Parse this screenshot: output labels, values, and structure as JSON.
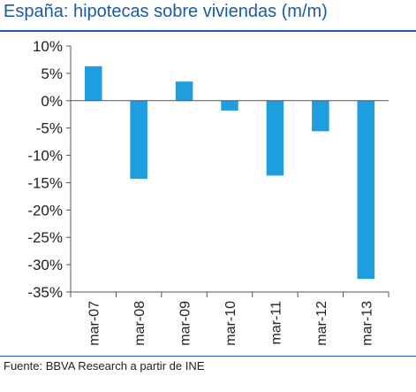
{
  "chart_data": {
    "type": "bar",
    "title": "España: hipotecas sobre viviendas (m/m)",
    "xlabel": "",
    "ylabel": "",
    "categories": [
      "mar-07",
      "mar-08",
      "mar-09",
      "mar-10",
      "mar-11",
      "mar-12",
      "mar-13"
    ],
    "values": [
      6.3,
      -14.3,
      3.5,
      -1.8,
      -13.7,
      -5.6,
      -32.6
    ],
    "ylim": [
      -35,
      10
    ],
    "y_ticks": [
      10,
      5,
      0,
      -5,
      -10,
      -15,
      -20,
      -25,
      -30,
      -35
    ],
    "tick_format": "%",
    "grid": false,
    "legend": "none",
    "bar_color": "#1e9ddf",
    "axis_color": "#555555"
  },
  "colors": {
    "title": "#1a5aa8",
    "rule": "#1a5aa8"
  },
  "source": "Fuente: BBVA Research a partir de INE"
}
